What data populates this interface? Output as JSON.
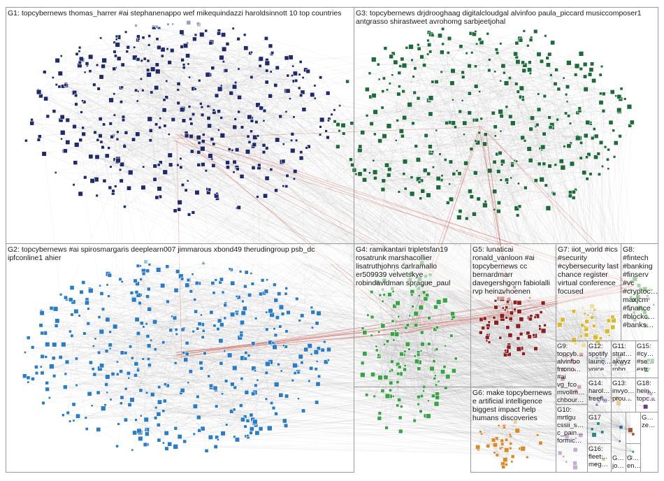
{
  "graph": {
    "colors": {
      "edge": "#8c8c8c",
      "cross_edge": "#c0392b",
      "node_border": "#ffffff"
    },
    "groups": [
      {
        "id": "G1",
        "label": "G1: topcybernews thomas_harrer #ai stephanenappo wef mikequindazzi haroldsinnott 10 top countries",
        "node_color": "#1f2a6b"
      },
      {
        "id": "G3",
        "label": "G3: topcybernews drjdrooghaag digitalcloudgal alvinfoo paula_piccard musiccomposer1 antgrasso shirastweet avrohomg sarbjeetjohal",
        "node_color": "#1e6b3a"
      },
      {
        "id": "G2",
        "label": "G2: topcybernews #ai spirosmargaris deeplearn007 jimmarous xbond49 therudingroup psb_dc ipfconline1 ahier",
        "node_color": "#2a7cc7"
      },
      {
        "id": "G4",
        "label": "G4: ramikantari tripletsfan19 rosatrunk marshacollier lisatruthjohns carlramallo er509939 velvetskye robindavidman sprague_paul",
        "node_color": "#3aa346"
      },
      {
        "id": "G5",
        "label": "G5: lunaticai ronald_vanloon #ai topcybernews cc bernardmarr davegershgorn fabiolalli rvp heinzvhoenen",
        "node_color": "#8b2020"
      },
      {
        "id": "G7",
        "label": "G7: iiot_world #ics #security #cybersecurity last chance register virtual conference focused",
        "node_color": "#d9b92a"
      },
      {
        "id": "G8",
        "label": "G8: #fintech #banking #finserv #vc #cryptoc… maxjcm #finance #blockc… #banks…",
        "node_color": "#3b9a3b"
      },
      {
        "id": "G6",
        "label": "G6: make topcybernews e artificial intelligence biggest impact help humans discoveries",
        "node_color": "#d98a2a"
      },
      {
        "id": "G9",
        "label": "G9: topcyb… alvinfoo frrono… #ai vg_fco mvollm… chbour…",
        "node_color": "#a04040"
      },
      {
        "id": "G12",
        "label": "G12: spotify launc… voice…",
        "node_color": "#5a6a8a"
      },
      {
        "id": "G11",
        "label": "G11: strat… akwyz robg…",
        "node_color": "#7a7a7a"
      },
      {
        "id": "G15",
        "label": "G15: #cy… #se… extr…",
        "node_color": "#5aa05a"
      },
      {
        "id": "G14",
        "label": "G14: harol… freefl…",
        "node_color": "#4a5a9a"
      },
      {
        "id": "G13",
        "label": "G13: invyo… prou…",
        "node_color": "#c08a2a"
      },
      {
        "id": "G18",
        "label": "G18: hein… topc…",
        "node_color": "#6a3a8a"
      },
      {
        "id": "G10",
        "label": "G10: mrtlgu cssii_s… c_pain… formic…",
        "node_color": "#7a4a9a"
      },
      {
        "id": "G17",
        "label": "G17",
        "node_color": "#2a8a8a"
      },
      {
        "id": "G16",
        "label": "G16: fleet… meg…",
        "node_color": "#8a8a3a"
      },
      {
        "id": "G19",
        "label": "G… jo…",
        "node_color": "#3a6a9a"
      },
      {
        "id": "G20",
        "label": "G… ze…",
        "node_color": "#9a5a3a"
      },
      {
        "id": "G21",
        "label": "G… en…",
        "node_color": "#3a9a7a"
      }
    ]
  }
}
